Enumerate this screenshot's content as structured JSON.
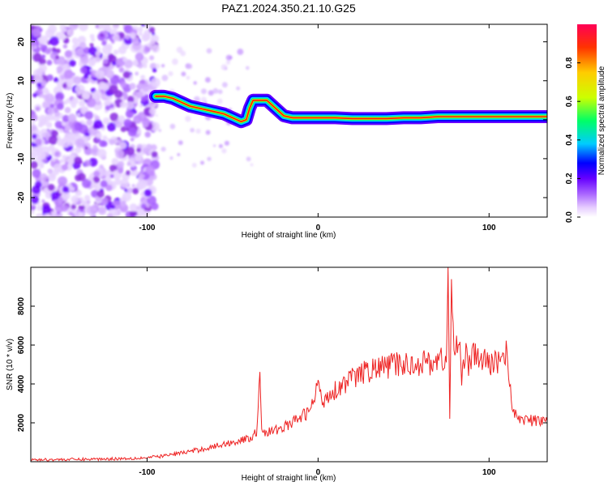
{
  "figure": {
    "title": "PAZ1.2024.350.21.10.G25"
  },
  "chart_data": [
    {
      "type": "heatmap",
      "xlabel": "Height of straight line (km)",
      "ylabel": "Frequency (Hz)",
      "xlim": [
        -168,
        134
      ],
      "ylim": [
        -25,
        24.5
      ],
      "xticks": [
        -100,
        0,
        100
      ],
      "yticks": [
        -20,
        -10,
        0,
        10,
        20
      ],
      "colorbar": {
        "label": "Normalized spectral amplitude",
        "range": [
          0,
          1
        ],
        "ticks": [
          0.0,
          0.2,
          0.4,
          0.6,
          0.8
        ],
        "colormap": [
          "#ffffff",
          "#e6ccff",
          "#aa66ff",
          "#6600ff",
          "#0000ff",
          "#00ccff",
          "#00ff66",
          "#ccff00",
          "#ffcc00",
          "#ff3300",
          "#ff0055"
        ]
      },
      "ridge": {
        "x": [
          -95,
          -90,
          -85,
          -80,
          -75,
          -70,
          -65,
          -60,
          -55,
          -50,
          -45,
          -42,
          -40,
          -38,
          -35,
          -30,
          -25,
          -20,
          -15,
          -10,
          -5,
          0,
          10,
          20,
          30,
          40,
          50,
          60,
          70,
          80,
          90,
          100,
          110,
          120,
          134
        ],
        "freq": [
          6,
          6,
          5.5,
          4.5,
          3.5,
          3,
          2.5,
          2,
          1.5,
          0.5,
          -0.5,
          0,
          3,
          5,
          5,
          5,
          3,
          1,
          0.5,
          0.5,
          0.5,
          0.5,
          0.5,
          0.3,
          0.3,
          0.3,
          0.5,
          0.5,
          0.8,
          0.8,
          0.8,
          0.8,
          0.8,
          0.8,
          0.8
        ]
      }
    },
    {
      "type": "line",
      "xlabel": "Height of straight line (km)",
      "ylabel": "SNR (10 * v/v)",
      "xlim": [
        -168,
        134
      ],
      "ylim": [
        0,
        10000
      ],
      "xticks": [
        -100,
        0,
        100
      ],
      "yticks": [
        2000,
        4000,
        6000,
        8000
      ],
      "series": [
        {
          "color": "#ee2222",
          "x": [
            -168,
            -140,
            -120,
            -100,
            -90,
            -80,
            -70,
            -60,
            -50,
            -40,
            -36,
            -34,
            -33,
            -32,
            -30,
            -25,
            -20,
            -15,
            -10,
            -5,
            -2,
            0,
            2,
            5,
            10,
            15,
            20,
            25,
            30,
            35,
            40,
            45,
            50,
            55,
            60,
            65,
            70,
            73,
            75,
            76,
            77,
            78,
            80,
            82,
            84,
            86,
            88,
            90,
            95,
            100,
            105,
            110,
            112,
            114,
            120,
            125,
            134
          ],
          "y": [
            100,
            120,
            150,
            200,
            300,
            450,
            600,
            800,
            1000,
            1200,
            1500,
            4800,
            1800,
            1500,
            1500,
            1600,
            1800,
            2000,
            2300,
            2600,
            3200,
            4300,
            3000,
            3400,
            3700,
            4000,
            4300,
            4500,
            4700,
            4800,
            4900,
            5000,
            5000,
            5000,
            5100,
            5100,
            5200,
            5300,
            5000,
            9900,
            2000,
            9100,
            5000,
            6800,
            4500,
            5700,
            4800,
            5500,
            5300,
            5000,
            5200,
            5600,
            4400,
            2400,
            2200,
            2100,
            2100
          ]
        }
      ]
    }
  ]
}
